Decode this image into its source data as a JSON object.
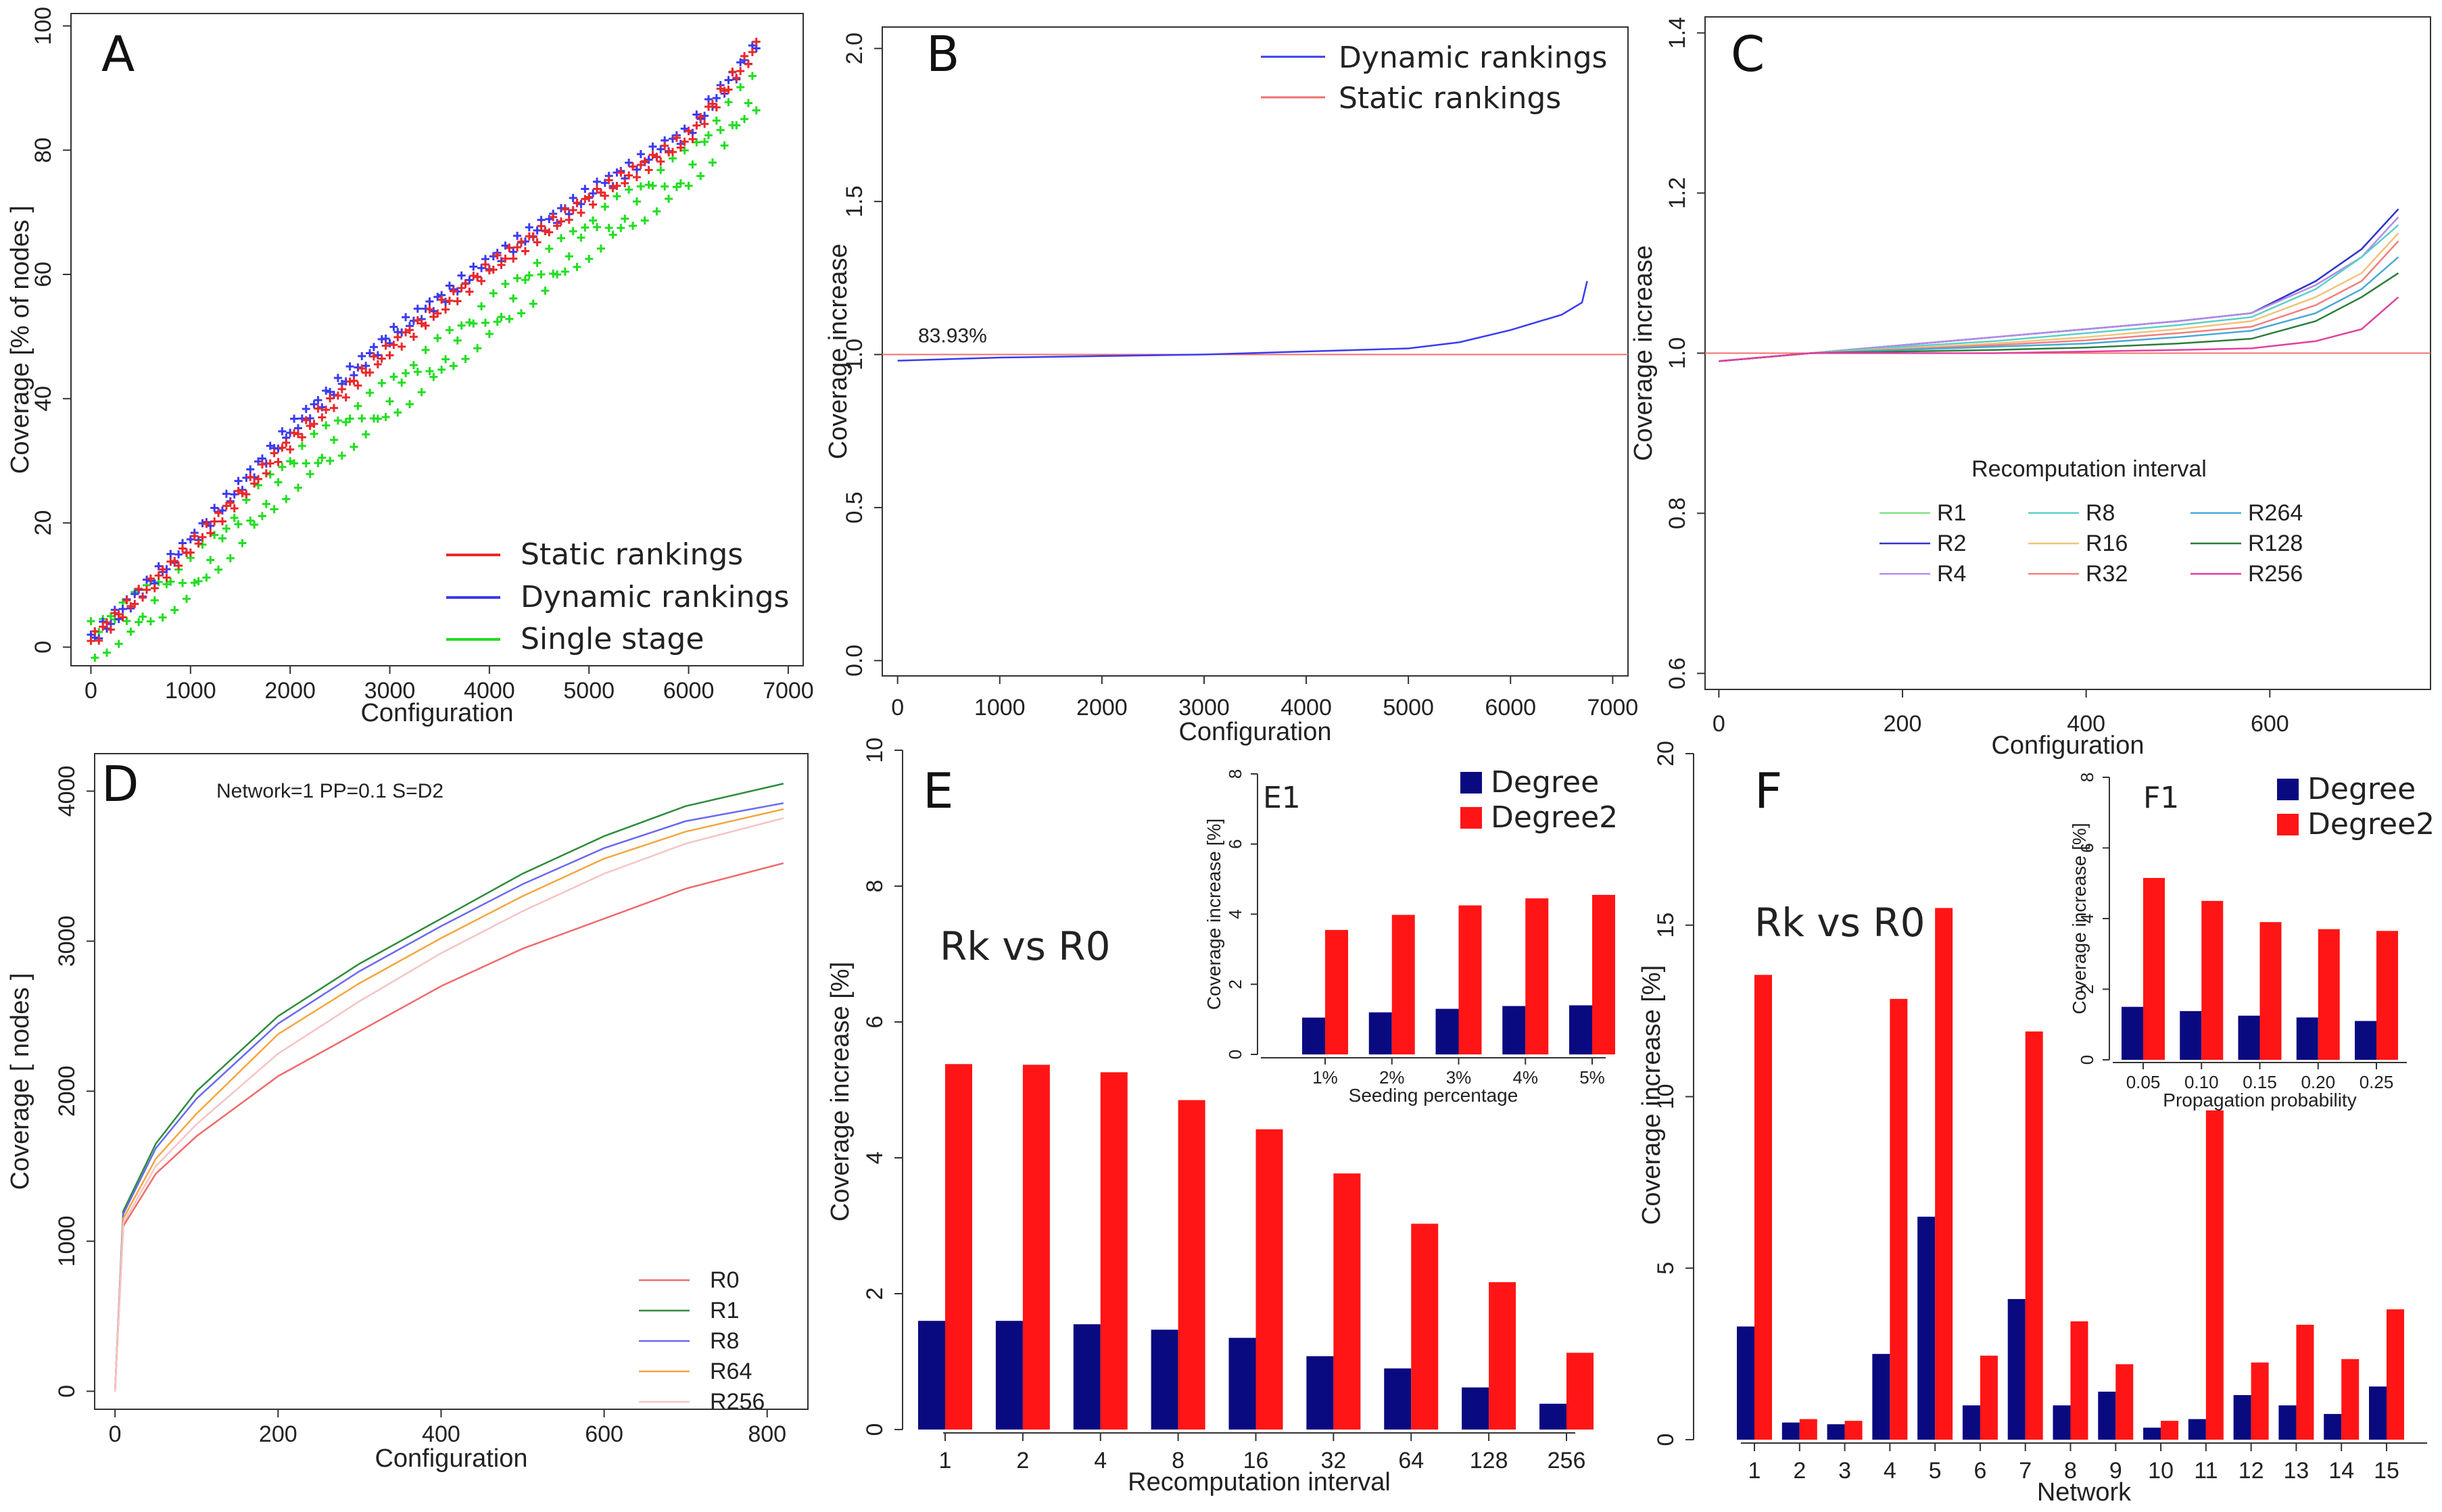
{
  "figure_title": "",
  "chart_data": [
    {
      "panel": "A",
      "type": "scatter",
      "xlabel": "Configuration",
      "ylabel": "Coverage  [% of nodes ]",
      "xlim": [
        0,
        7000
      ],
      "ylim": [
        0,
        100
      ],
      "xticks": [
        "0",
        "1000",
        "2000",
        "3000",
        "4000",
        "5000",
        "6000",
        "7000"
      ],
      "yticks": [
        "0",
        "20",
        "40",
        "60",
        "80",
        "100"
      ],
      "legend": [
        "Static rankings",
        "Dynamic rankings",
        "Single stage"
      ],
      "colors": [
        "#e8292b",
        "#3b3bf0",
        "#22dd22"
      ],
      "x": [
        0,
        1000,
        2000,
        3000,
        4000,
        5000,
        6000,
        6700
      ],
      "series": [
        {
          "name": "Static rankings",
          "values": [
            1,
            16,
            33,
            48,
            61,
            72,
            82,
            97
          ]
        },
        {
          "name": "Dynamic rankings",
          "values": [
            1,
            17,
            35,
            50,
            62,
            73,
            83,
            97
          ]
        },
        {
          "name": "Single stage",
          "values": [
            1,
            11,
            28,
            40,
            53,
            66,
            77,
            90
          ]
        }
      ]
    },
    {
      "panel": "B",
      "type": "line",
      "xlabel": "Configuration",
      "ylabel": "Coverage increase",
      "xlim": [
        0,
        7000
      ],
      "ylim": [
        0,
        2
      ],
      "xticks": [
        "0",
        "1000",
        "2000",
        "3000",
        "4000",
        "5000",
        "6000",
        "7000"
      ],
      "yticks": [
        "0.0",
        "0.5",
        "1.0",
        "1.5",
        "2.0"
      ],
      "legend": [
        "Dynamic rankings",
        "Static rankings"
      ],
      "colors": [
        "#3b3bf0",
        "#f07070"
      ],
      "annotation": "83.93%",
      "x": [
        0,
        1000,
        2000,
        3000,
        4000,
        5000,
        5500,
        6000,
        6500,
        6700,
        6750
      ],
      "series": [
        {
          "name": "Dynamic rankings",
          "values": [
            0.98,
            0.99,
            0.995,
            1.0,
            1.01,
            1.02,
            1.04,
            1.08,
            1.13,
            1.17,
            1.24
          ]
        },
        {
          "name": "Static rankings",
          "values": [
            1.0,
            1.0,
            1.0,
            1.0,
            1.0,
            1.0,
            1.0,
            1.0,
            1.0,
            1.0,
            1.0
          ]
        }
      ]
    },
    {
      "panel": "C",
      "type": "line",
      "xlabel": "Configuration",
      "ylabel": "Coverage increase",
      "xlim": [
        0,
        750
      ],
      "ylim": [
        0.6,
        1.4
      ],
      "xticks": [
        "0",
        "200",
        "400",
        "600"
      ],
      "yticks": [
        "0.6",
        "0.8",
        "1.0",
        "1.2",
        "1.4"
      ],
      "legend_title": "Recomputation interval",
      "x": [
        0,
        100,
        200,
        300,
        400,
        500,
        580,
        650,
        700,
        740
      ],
      "series": [
        {
          "name": "R1",
          "color": "#7ee27e",
          "values": [
            0.99,
            1.0,
            1.01,
            1.02,
            1.03,
            1.04,
            1.05,
            1.09,
            1.13,
            1.18
          ]
        },
        {
          "name": "R2",
          "color": "#3333cc",
          "values": [
            0.99,
            1.0,
            1.01,
            1.02,
            1.03,
            1.04,
            1.05,
            1.09,
            1.13,
            1.18
          ]
        },
        {
          "name": "R4",
          "color": "#b48ce8",
          "values": [
            0.99,
            1.0,
            1.01,
            1.02,
            1.03,
            1.04,
            1.05,
            1.085,
            1.12,
            1.17
          ]
        },
        {
          "name": "R8",
          "color": "#5ad0c8",
          "values": [
            0.99,
            1.0,
            1.008,
            1.015,
            1.025,
            1.035,
            1.045,
            1.08,
            1.12,
            1.16
          ]
        },
        {
          "name": "R16",
          "color": "#f2c27a",
          "values": [
            0.99,
            1.0,
            1.006,
            1.012,
            1.02,
            1.03,
            1.04,
            1.07,
            1.1,
            1.15
          ]
        },
        {
          "name": "R32",
          "color": "#f08080",
          "values": [
            0.99,
            1.0,
            1.005,
            1.01,
            1.016,
            1.025,
            1.033,
            1.06,
            1.09,
            1.14
          ]
        },
        {
          "name": "R264",
          "color": "#4aa8d8",
          "values": [
            0.99,
            1.0,
            1.004,
            1.008,
            1.012,
            1.02,
            1.028,
            1.05,
            1.08,
            1.12
          ]
        },
        {
          "name": "R128",
          "color": "#2e7d3b",
          "values": [
            0.99,
            1.0,
            1.002,
            1.004,
            1.007,
            1.012,
            1.018,
            1.04,
            1.07,
            1.1
          ]
        },
        {
          "name": "R256",
          "color": "#e040a0",
          "values": [
            0.99,
            1.0,
            1.0,
            1.0,
            1.002,
            1.004,
            1.006,
            1.015,
            1.03,
            1.07
          ]
        }
      ],
      "reference_line": 1.0
    },
    {
      "panel": "D",
      "type": "line",
      "title": "Network=1 PP=0.1 S=D2",
      "xlabel": "Configuration",
      "ylabel": "Coverage [ nodes ]",
      "xlim": [
        0,
        830
      ],
      "ylim": [
        0,
        4100
      ],
      "xticks": [
        "0",
        "200",
        "400",
        "600",
        "800"
      ],
      "yticks": [
        "0",
        "1000",
        "2000",
        "3000",
        "4000"
      ],
      "x": [
        0,
        10,
        50,
        100,
        200,
        300,
        400,
        500,
        600,
        700,
        820
      ],
      "series": [
        {
          "name": "R0",
          "color": "#f06a6a",
          "values": [
            0,
            1100,
            1450,
            1700,
            2100,
            2400,
            2700,
            2950,
            3150,
            3350,
            3520
          ]
        },
        {
          "name": "R1",
          "color": "#2e8b3b",
          "values": [
            0,
            1200,
            1650,
            2000,
            2500,
            2850,
            3150,
            3450,
            3700,
            3900,
            4050
          ]
        },
        {
          "name": "R8",
          "color": "#6a6af0",
          "values": [
            0,
            1180,
            1620,
            1950,
            2450,
            2800,
            3100,
            3380,
            3620,
            3800,
            3920
          ]
        },
        {
          "name": "R64",
          "color": "#f4a640",
          "values": [
            0,
            1150,
            1550,
            1850,
            2380,
            2720,
            3020,
            3300,
            3550,
            3730,
            3880
          ]
        },
        {
          "name": "R256",
          "color": "#f6c4c4",
          "values": [
            0,
            1120,
            1500,
            1780,
            2250,
            2600,
            2920,
            3200,
            3450,
            3650,
            3820
          ]
        }
      ]
    },
    {
      "panel": "E",
      "type": "bar",
      "label_text": "Rk vs R0",
      "xlabel": "Recomputation interval",
      "ylabel": "Coverage increase [%]",
      "ylim": [
        0,
        10
      ],
      "yticks": [
        "0",
        "2",
        "4",
        "6",
        "8",
        "10"
      ],
      "categories": [
        "1",
        "2",
        "4",
        "8",
        "16",
        "32",
        "64",
        "128",
        "256"
      ],
      "series": [
        {
          "name": "Degree",
          "color": "#0a0a80",
          "values": [
            1.6,
            1.6,
            1.55,
            1.47,
            1.35,
            1.08,
            0.9,
            0.62,
            0.38
          ]
        },
        {
          "name": "Degree2",
          "color": "#ff1515",
          "values": [
            5.38,
            5.37,
            5.26,
            4.85,
            4.42,
            3.77,
            3.03,
            2.17,
            1.13
          ]
        }
      ],
      "inset": {
        "label": "E1",
        "xlabel": "Seeding percentage",
        "ylabel": "Coverage increase [%]",
        "ylim": [
          0,
          8
        ],
        "yticks": [
          "0",
          "2",
          "4",
          "6",
          "8"
        ],
        "categories": [
          "1%",
          "2%",
          "3%",
          "4%",
          "5%"
        ],
        "series": [
          {
            "name": "Degree",
            "color": "#0a0a80",
            "values": [
              1.05,
              1.2,
              1.3,
              1.38,
              1.4
            ]
          },
          {
            "name": "Degree2",
            "color": "#ff1515",
            "values": [
              3.55,
              3.98,
              4.25,
              4.45,
              4.55
            ]
          }
        ]
      },
      "legend": [
        "Degree",
        "Degree2"
      ]
    },
    {
      "panel": "F",
      "type": "bar",
      "label_text": "Rk vs R0",
      "xlabel": "Network",
      "ylabel": "Coverage increase [%]",
      "ylim": [
        0,
        20
      ],
      "yticks": [
        "0",
        "5",
        "10",
        "15",
        "20"
      ],
      "categories": [
        "1",
        "2",
        "3",
        "4",
        "5",
        "6",
        "7",
        "8",
        "9",
        "10",
        "11",
        "12",
        "13",
        "14",
        "15"
      ],
      "series": [
        {
          "name": "Degree",
          "color": "#0a0a80",
          "values": [
            3.3,
            0.5,
            0.45,
            2.5,
            6.5,
            1.0,
            4.1,
            1.0,
            1.4,
            0.35,
            0.6,
            1.3,
            1.0,
            0.75,
            1.55
          ]
        },
        {
          "name": "Degree2",
          "color": "#ff1515",
          "values": [
            13.55,
            0.6,
            0.55,
            12.85,
            15.5,
            2.45,
            11.9,
            3.45,
            2.2,
            0.55,
            9.6,
            2.25,
            3.35,
            2.35,
            3.8
          ]
        }
      ],
      "inset": {
        "label": "F1",
        "xlabel": "Propagation probability",
        "ylabel": "Coverage increase [%]",
        "ylim": [
          0,
          8
        ],
        "yticks": [
          "0",
          "2",
          "4",
          "6",
          "8"
        ],
        "categories": [
          "0.05",
          "0.10",
          "0.15",
          "0.20",
          "0.25"
        ],
        "series": [
          {
            "name": "Degree",
            "color": "#0a0a80",
            "values": [
              1.5,
              1.38,
              1.25,
              1.2,
              1.1
            ]
          },
          {
            "name": "Degree2",
            "color": "#ff1515",
            "values": [
              5.15,
              4.5,
              3.9,
              3.7,
              3.65
            ]
          }
        ]
      },
      "legend": [
        "Degree",
        "Degree2"
      ]
    }
  ]
}
